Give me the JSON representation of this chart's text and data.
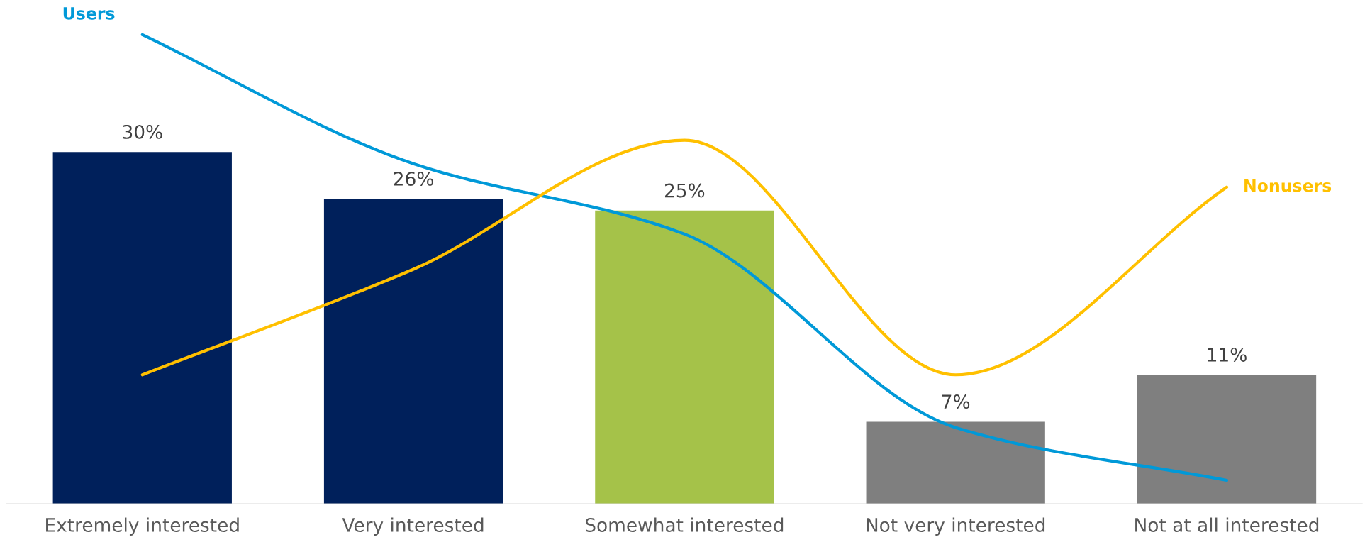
{
  "chart_data": {
    "type": "bar",
    "categories": [
      "Extremely interested",
      "Very interested",
      "Somewhat interested",
      "Not very interested",
      "Not at all interested"
    ],
    "series": [
      {
        "values": [
          30,
          26,
          25,
          7,
          11
        ],
        "colors": [
          "#00205b",
          "#00205b",
          "#a5c249",
          "#7f7f7f",
          "#7f7f7f"
        ],
        "value_labels": [
          "30%",
          "26%",
          "25%",
          "7%",
          "11%"
        ]
      },
      {
        "type": "line",
        "name": "Users",
        "color": "#0099d8",
        "values": [
          40,
          29,
          23,
          6.5,
          2
        ]
      },
      {
        "type": "line",
        "name": "Nonusers",
        "color": "#ffc000",
        "values": [
          11,
          20,
          31,
          11,
          27
        ]
      }
    ],
    "tick_labels": "x",
    "grid": false,
    "legend": false
  }
}
